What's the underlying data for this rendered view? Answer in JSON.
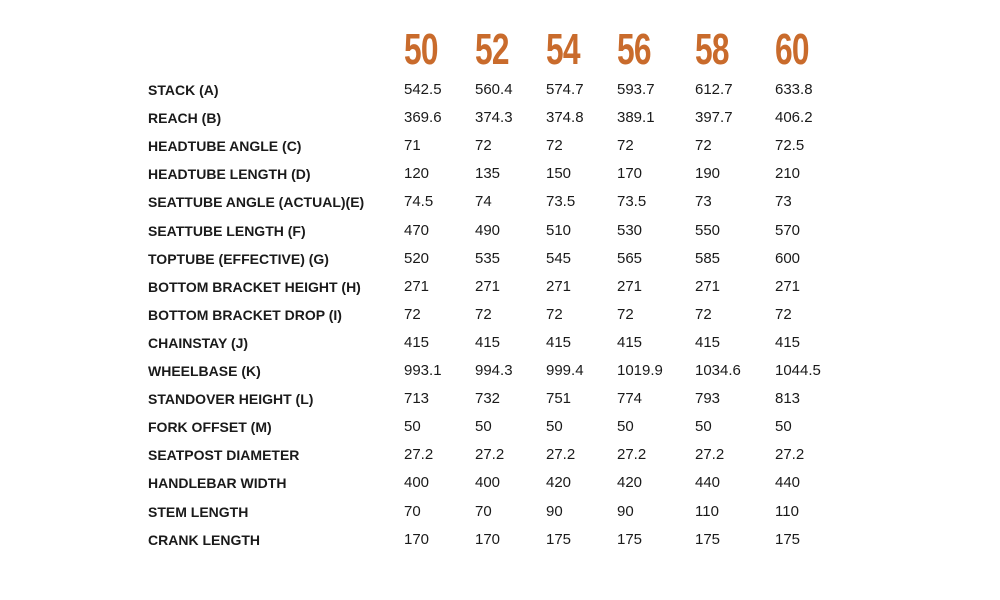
{
  "accent_color": "#c96b2c",
  "sizes": [
    "50",
    "52",
    "54",
    "56",
    "58",
    "60"
  ],
  "rows": [
    {
      "label": "STACK (A)",
      "values": [
        "542.5",
        "560.4",
        "574.7",
        "593.7",
        "612.7",
        "633.8"
      ]
    },
    {
      "label": "REACH (B)",
      "values": [
        "369.6",
        "374.3",
        "374.8",
        "389.1",
        "397.7",
        "406.2"
      ]
    },
    {
      "label": "HEADTUBE ANGLE (C)",
      "values": [
        "71",
        "72",
        "72",
        "72",
        "72",
        "72.5"
      ]
    },
    {
      "label": "HEADTUBE LENGTH (D)",
      "values": [
        "120",
        "135",
        "150",
        "170",
        "190",
        "210"
      ]
    },
    {
      "label": "SEATTUBE ANGLE (ACTUAL)(E)",
      "values": [
        "74.5",
        "74",
        "73.5",
        "73.5",
        "73",
        "73"
      ]
    },
    {
      "label": "SEATTUBE LENGTH (F)",
      "values": [
        "470",
        "490",
        "510",
        "530",
        "550",
        "570"
      ]
    },
    {
      "label": "TOPTUBE (EFFECTIVE) (G)",
      "values": [
        "520",
        "535",
        "545",
        "565",
        "585",
        "600"
      ]
    },
    {
      "label": "BOTTOM BRACKET HEIGHT (H)",
      "values": [
        "271",
        "271",
        "271",
        "271",
        "271",
        "271"
      ]
    },
    {
      "label": "BOTTOM BRACKET DROP (I)",
      "values": [
        "72",
        "72",
        "72",
        "72",
        "72",
        "72"
      ]
    },
    {
      "label": "CHAINSTAY (J)",
      "values": [
        "415",
        "415",
        "415",
        "415",
        "415",
        "415"
      ]
    },
    {
      "label": "WHEELBASE (K)",
      "values": [
        "993.1",
        "994.3",
        "999.4",
        "1019.9",
        "1034.6",
        "1044.5"
      ]
    },
    {
      "label": "STANDOVER HEIGHT (L)",
      "values": [
        "713",
        "732",
        "751",
        "774",
        "793",
        "813"
      ]
    },
    {
      "label": "FORK OFFSET (M)",
      "values": [
        "50",
        "50",
        "50",
        "50",
        "50",
        "50"
      ]
    },
    {
      "label": "SEATPOST DIAMETER",
      "values": [
        "27.2",
        "27.2",
        "27.2",
        "27.2",
        "27.2",
        "27.2"
      ]
    },
    {
      "label": "HANDLEBAR WIDTH",
      "values": [
        "400",
        "400",
        "420",
        "420",
        "440",
        "440"
      ]
    },
    {
      "label": "STEM LENGTH",
      "values": [
        "70",
        "70",
        "90",
        "90",
        "110",
        "110"
      ]
    },
    {
      "label": "CRANK LENGTH",
      "values": [
        "170",
        "170",
        "175",
        "175",
        "175",
        "175"
      ]
    }
  ]
}
